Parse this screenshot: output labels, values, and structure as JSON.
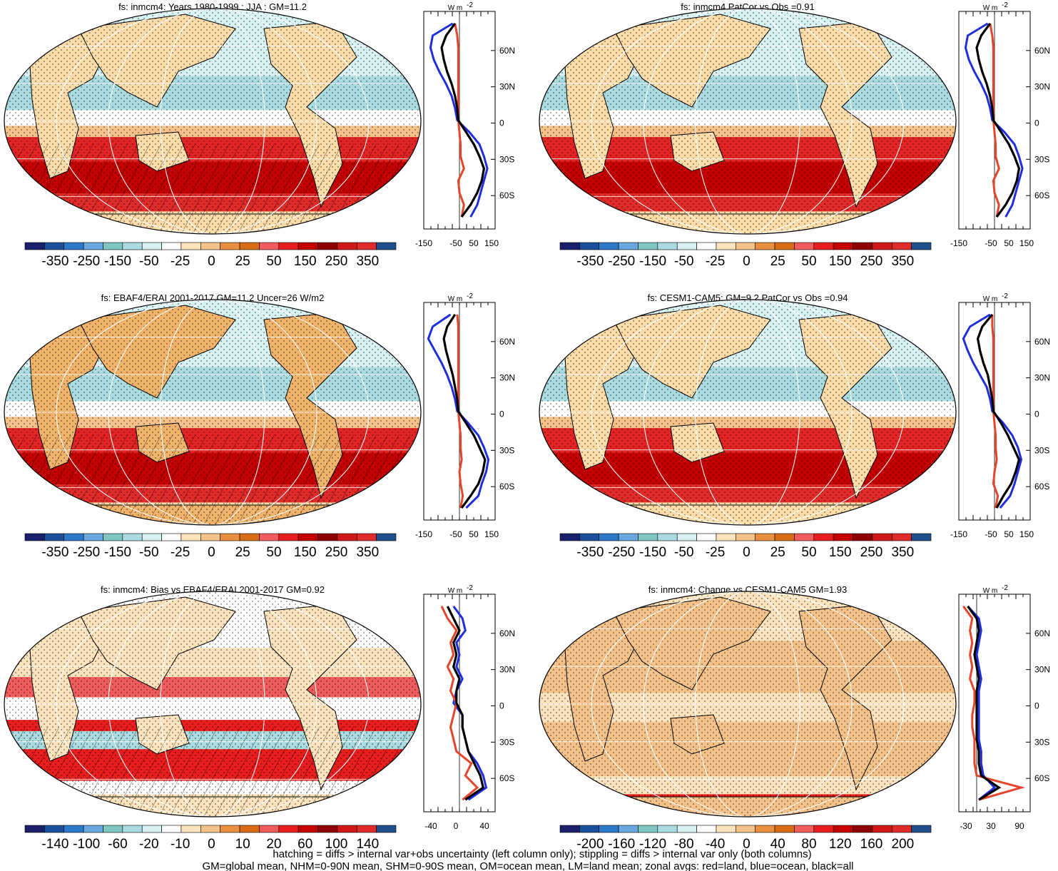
{
  "colors": {
    "palette": [
      "#1b1f6b",
      "#1a4f9c",
      "#2d79c9",
      "#6aa6df",
      "#7fc6c0",
      "#a9dbe0",
      "#d8f2f4",
      "#ffffff",
      "#fbe3bd",
      "#f3c28a",
      "#e98f3f",
      "#d86d16",
      "#f05b5b",
      "#e81e1e",
      "#c40000",
      "#8f0000",
      "#d01818",
      "#e02b2b",
      "#1f4e8c"
    ],
    "land": "#f9dcaa",
    "ocean_cool": "#c8ecee",
    "ocean_warm": "#e32424",
    "land_line": "#e5462b",
    "ocean_line": "#1f2fe0",
    "all_line": "#000000"
  },
  "panels": [
    {
      "title": "fs: inmcm4: Years 1980-1999 : JJA : GM=11.2",
      "colorbar": [
        "-350",
        "-250",
        "-150",
        "-50",
        "-25",
        "0",
        "25",
        "50",
        "150",
        "250",
        "350"
      ],
      "zonal_ticks": [
        "-150",
        "-50",
        "50",
        "150"
      ],
      "unit": "W m",
      "unit_sup": "-2"
    },
    {
      "title": "fs: inmcm4 PatCor vs Obs =0.91",
      "colorbar": [
        "-350",
        "-250",
        "-150",
        "-50",
        "-25",
        "0",
        "25",
        "50",
        "150",
        "250",
        "350"
      ],
      "zonal_ticks": [
        "-150",
        "-50",
        "50",
        "150"
      ],
      "unit": "W m",
      "unit_sup": "-2"
    },
    {
      "title": "fs: EBAF4/ERAI 2001-2017 GM=11.2 Uncer=26 W/m2",
      "colorbar": [
        "-350",
        "-250",
        "-150",
        "-50",
        "-25",
        "0",
        "25",
        "50",
        "150",
        "250",
        "350"
      ],
      "zonal_ticks": [
        "-150",
        "-50",
        "50",
        "150"
      ],
      "unit": "W m",
      "unit_sup": "-2"
    },
    {
      "title": "fs: CESM1-CAM5: GM=9.2 PatCor vs Obs =0.94",
      "colorbar": [
        "-350",
        "-250",
        "-150",
        "-50",
        "-25",
        "0",
        "25",
        "50",
        "150",
        "250",
        "350"
      ],
      "zonal_ticks": [
        "-150",
        "-50",
        "50",
        "150"
      ],
      "unit": "W m",
      "unit_sup": "-2"
    },
    {
      "title": "fs: inmcm4: Bias vs EBAF4/ERAI 2001-2017 GM=0.92",
      "colorbar": [
        "-140",
        "-100",
        "-60",
        "-20",
        "-10",
        "0",
        "10",
        "20",
        "60",
        "100",
        "140"
      ],
      "zonal_ticks": [
        "-40",
        "0",
        "40"
      ],
      "unit": "W m",
      "unit_sup": "-2"
    },
    {
      "title": "fs: inmcm4: Change vs CESM1-CAM5 GM=1.93",
      "colorbar": [
        "-200",
        "-160",
        "-120",
        "-80",
        "-40",
        "0",
        "40",
        "80",
        "120",
        "160",
        "200"
      ],
      "zonal_ticks": [
        "-30",
        "30",
        "90"
      ],
      "unit": "W m",
      "unit_sup": "-2"
    }
  ],
  "lat_labels": [
    "60N",
    "30N",
    "0",
    "30S",
    "60S"
  ],
  "footer": {
    "line1": "hatching = diffs > internal var+obs uncertainty (left column only); stippling = diffs > internal var only (both columns)",
    "line2": "GM=global mean, NHM=0-90N mean, SHM=0-90S mean, OM=ocean mean, LM=land mean; zonal avgs: red=land, blue=ocean, black=all"
  },
  "chart_data": [
    {
      "type": "heatmap",
      "title": "fs: inmcm4: Years 1980-1999 : JJA : GM=11.2",
      "colorbar_ticks": [
        -350,
        -250,
        -150,
        -50,
        -25,
        0,
        25,
        50,
        150,
        250,
        350
      ],
      "zonal_profile": {
        "lat": [
          80,
          70,
          60,
          50,
          40,
          30,
          20,
          10,
          0,
          -10,
          -20,
          -30,
          -40,
          -50,
          -60,
          -70,
          -80
        ],
        "ocean": [
          -30,
          -120,
          -130,
          -115,
          -90,
          -60,
          -35,
          -20,
          -10,
          45,
          90,
          110,
          125,
          110,
          95,
          80,
          50
        ],
        "land": [
          -20,
          -10,
          -5,
          -5,
          -5,
          -5,
          -5,
          -5,
          -5,
          0,
          5,
          5,
          20,
          -5,
          0,
          20,
          10
        ],
        "all": [
          -20,
          -60,
          -80,
          -70,
          -55,
          -35,
          -20,
          -10,
          -5,
          30,
          65,
          90,
          110,
          100,
          80,
          50,
          10
        ]
      }
    },
    {
      "type": "heatmap",
      "title": "fs: inmcm4 PatCor vs Obs =0.91",
      "colorbar_ticks": [
        -350,
        -250,
        -150,
        -50,
        -25,
        0,
        25,
        50,
        150,
        250,
        350
      ],
      "zonal_profile": {
        "lat": [
          80,
          70,
          60,
          50,
          40,
          30,
          20,
          10,
          0,
          -10,
          -20,
          -30,
          -40,
          -50,
          -60,
          -70,
          -80
        ],
        "ocean": [
          -30,
          -120,
          -130,
          -115,
          -90,
          -60,
          -35,
          -20,
          -10,
          45,
          90,
          110,
          125,
          110,
          95,
          80,
          50
        ],
        "land": [
          -20,
          -10,
          -5,
          -5,
          -5,
          -5,
          -5,
          -5,
          -5,
          0,
          5,
          5,
          20,
          -5,
          0,
          20,
          10
        ],
        "all": [
          -20,
          -60,
          -80,
          -70,
          -55,
          -35,
          -20,
          -10,
          -5,
          30,
          65,
          90,
          110,
          100,
          80,
          50,
          10
        ]
      }
    },
    {
      "type": "heatmap",
      "title": "fs: EBAF4/ERAI 2001-2017 GM=11.2 Uncer=26 W/m2",
      "colorbar_ticks": [
        -350,
        -250,
        -150,
        -50,
        -25,
        0,
        25,
        50,
        150,
        250,
        350
      ],
      "zonal_profile": {
        "lat": [
          80,
          70,
          60,
          50,
          40,
          30,
          20,
          10,
          0,
          -10,
          -20,
          -30,
          -40,
          -50,
          -60,
          -70,
          -80
        ],
        "ocean": [
          -40,
          -120,
          -140,
          -110,
          -80,
          -55,
          -35,
          -20,
          -10,
          40,
          85,
          110,
          130,
          120,
          100,
          85,
          30
        ],
        "land": [
          -10,
          -5,
          -5,
          -5,
          -5,
          -5,
          -5,
          -5,
          -5,
          0,
          5,
          5,
          10,
          0,
          5,
          15,
          5
        ],
        "all": [
          -20,
          -55,
          -70,
          -60,
          -45,
          -30,
          -20,
          -10,
          -5,
          30,
          65,
          90,
          115,
          105,
          85,
          50,
          10
        ]
      }
    },
    {
      "type": "heatmap",
      "title": "fs: CESM1-CAM5: GM=9.2 PatCor vs Obs =0.94",
      "colorbar_ticks": [
        -350,
        -250,
        -150,
        -50,
        -25,
        0,
        25,
        50,
        150,
        250,
        350
      ],
      "zonal_profile": {
        "lat": [
          80,
          70,
          60,
          50,
          40,
          30,
          20,
          10,
          0,
          -10,
          -20,
          -30,
          -40,
          -50,
          -60,
          -70,
          -80
        ],
        "ocean": [
          -20,
          -110,
          -140,
          -120,
          -95,
          -65,
          -35,
          -20,
          -10,
          40,
          80,
          105,
          120,
          105,
          90,
          70,
          25
        ],
        "land": [
          -10,
          -10,
          -5,
          -5,
          -5,
          -5,
          -5,
          -5,
          -5,
          0,
          5,
          5,
          10,
          0,
          -5,
          15,
          5
        ],
        "all": [
          -10,
          -55,
          -75,
          -65,
          -50,
          -30,
          -20,
          -10,
          -5,
          30,
          60,
          85,
          110,
          95,
          75,
          40,
          10
        ]
      }
    },
    {
      "type": "heatmap",
      "title": "fs: inmcm4: Bias vs EBAF4/ERAI 2001-2017 GM=0.92",
      "colorbar_ticks": [
        -140,
        -100,
        -60,
        -20,
        -10,
        0,
        10,
        20,
        60,
        100,
        140
      ],
      "zonal_profile": {
        "lat": [
          80,
          70,
          60,
          50,
          40,
          30,
          20,
          10,
          0,
          -10,
          -20,
          -30,
          -40,
          -50,
          -60,
          -70,
          -80
        ],
        "ocean": [
          -10,
          5,
          10,
          -5,
          0,
          -5,
          5,
          -5,
          -10,
          5,
          5,
          10,
          15,
          30,
          40,
          45,
          15
        ],
        "land": [
          -30,
          -20,
          -5,
          -15,
          -10,
          -20,
          -10,
          -15,
          -5,
          -10,
          -15,
          -10,
          -5,
          20,
          10,
          30,
          5
        ],
        "all": [
          -20,
          -10,
          0,
          -10,
          -5,
          -10,
          0,
          -5,
          -5,
          5,
          5,
          10,
          15,
          25,
          35,
          40,
          10
        ]
      }
    },
    {
      "type": "heatmap",
      "title": "fs: inmcm4: Change vs CESM1-CAM5 GM=1.93",
      "colorbar_ticks": [
        -200,
        -160,
        -120,
        -80,
        -40,
        0,
        40,
        80,
        120,
        160,
        200
      ],
      "zonal_profile": {
        "lat": [
          80,
          70,
          60,
          50,
          40,
          30,
          20,
          10,
          0,
          -10,
          -20,
          -30,
          -40,
          -50,
          -60,
          -70,
          -80
        ],
        "ocean": [
          -20,
          5,
          10,
          5,
          0,
          5,
          10,
          5,
          5,
          5,
          5,
          5,
          10,
          10,
          15,
          40,
          5
        ],
        "land": [
          -30,
          -10,
          -15,
          -10,
          -15,
          -10,
          -15,
          -5,
          -5,
          -10,
          -10,
          -5,
          -5,
          -5,
          0,
          100,
          5
        ],
        "all": [
          -20,
          0,
          5,
          0,
          -5,
          0,
          5,
          0,
          0,
          0,
          0,
          0,
          5,
          5,
          10,
          50,
          5
        ]
      }
    }
  ]
}
